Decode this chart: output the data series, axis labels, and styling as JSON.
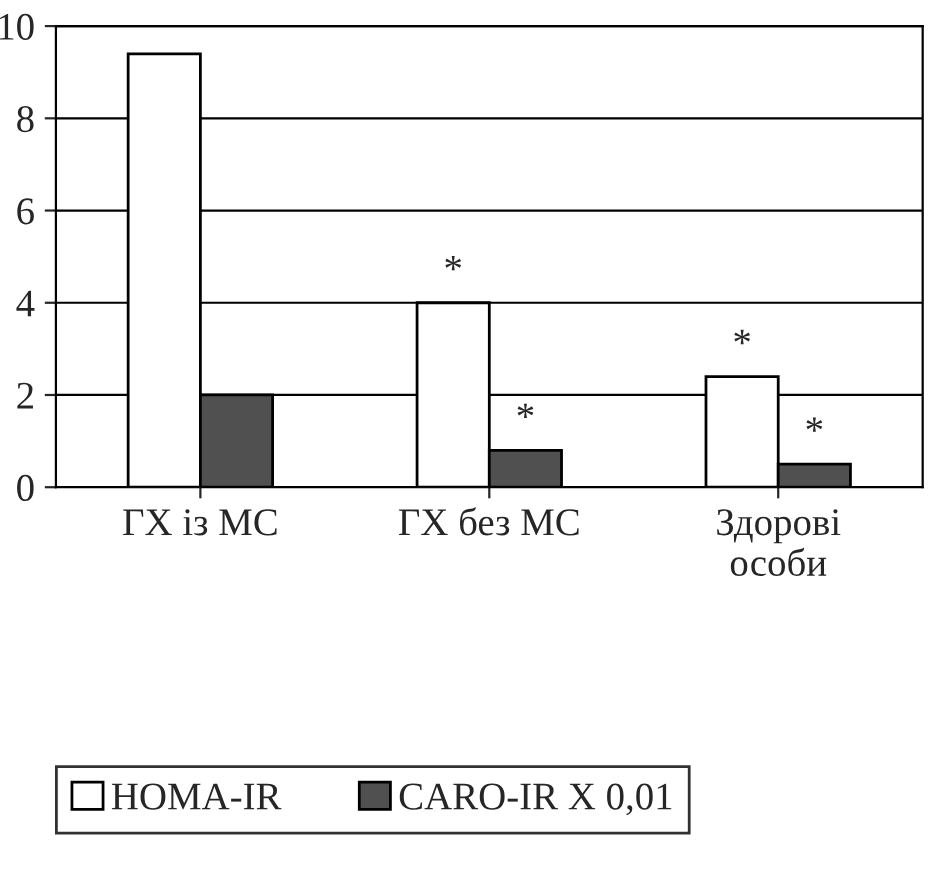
{
  "chart_data": {
    "type": "bar",
    "categories": [
      "ГХ із МС",
      "ГХ без МС",
      "Здорові\nособи"
    ],
    "series": [
      {
        "name": "HOMA-IR",
        "color": "#ffffff",
        "values": [
          9.4,
          4.0,
          2.4
        ]
      },
      {
        "name": "CARO-IR X 0,01",
        "color": "#505050",
        "values": [
          2.0,
          0.8,
          0.5
        ]
      }
    ],
    "ylim": [
      0,
      10
    ],
    "yticks": [
      0,
      2,
      4,
      6,
      8,
      10
    ],
    "grid": "y",
    "legend": "bottom",
    "annotations": [
      {
        "text": "*",
        "x": "ГХ без МС",
        "y": 4.0
      },
      {
        "text": "*",
        "x": "ГХ без МС",
        "y": 0.8
      },
      {
        "text": "*",
        "x": "Здорові\nособи",
        "y": 2.4
      },
      {
        "text": "*",
        "x": "Здорові\nособи",
        "y": 0.5
      }
    ]
  }
}
